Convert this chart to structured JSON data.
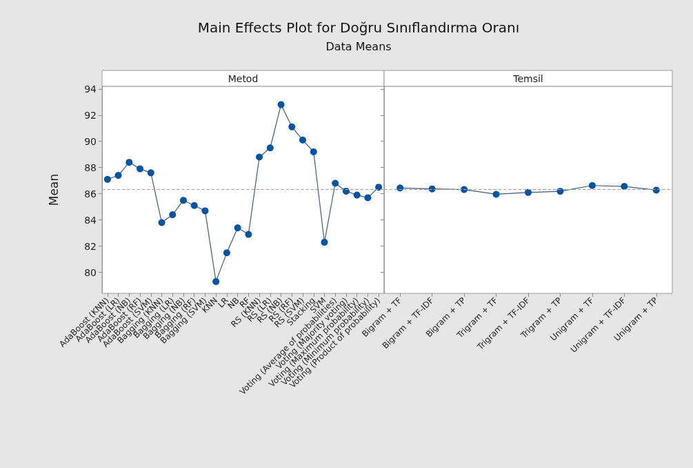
{
  "chart_data": [
    {
      "type": "line",
      "title": "Main Effects Plot for Doğru Sınıflandırma Oranı",
      "subtitle": "Data Means",
      "xlabel": "Metod",
      "ylabel": "Mean",
      "categories": [
        "AdaBoost (KNN)",
        "AdaBoost (LR)",
        "AdaBoost (NB)",
        "AdaBoost (RF)",
        "AdaBoost (SVM)",
        "Bagging (KNN)",
        "Bagging (LR)",
        "Bagging (NB)",
        "Bagging (RF)",
        "Bagging (SVM)",
        "KNN",
        "LR",
        "NB",
        "RF",
        "RS (KNN)",
        "RS (LR)",
        "RS (NB)",
        "RS (RF)",
        "RS (SVM)",
        "Stacking",
        "SVM",
        "Voting (Average of probabilities)",
        "Voting (Majority voting)",
        "Voting (Maximum probability)",
        "Voting (Minimum probability)",
        "Voting (Product of probability)"
      ],
      "series": [
        {
          "color": "#0054a6",
          "values": [
            87.1,
            87.4,
            88.4,
            87.9,
            87.6,
            83.8,
            84.4,
            85.5,
            85.1,
            84.7,
            79.3,
            81.5,
            83.4,
            82.9,
            88.8,
            89.5,
            92.8,
            91.1,
            90.1,
            89.2,
            82.3,
            86.8,
            86.2,
            85.9,
            85.7,
            86.5
          ]
        }
      ],
      "ylim": [
        78.4,
        94.2
      ],
      "yticks": [
        80,
        82,
        84,
        86,
        88,
        90,
        92,
        94
      ],
      "ref_lines": [
        {
          "axis": "y",
          "value": 86.35,
          "color": "#a0a0a0",
          "line_style": "dashed"
        }
      ],
      "marker": "circle",
      "grid": false
    },
    {
      "type": "line",
      "xlabel": "Temsil",
      "categories": [
        "Bigram + TF",
        "Bigram + TF-IDF",
        "Bigram + TP",
        "Trigram + TF",
        "Trigram + TF-IDF",
        "Trigram + TP",
        "Unigram + TF",
        "Unigram + TF-IDF",
        "Unigram + TP"
      ],
      "series": [
        {
          "color": "#0054a6",
          "values": [
            86.44,
            86.37,
            86.32,
            85.96,
            86.1,
            86.19,
            86.63,
            86.56,
            86.28
          ]
        }
      ],
      "ylim": [
        78.4,
        94.2
      ],
      "yticks": [
        80,
        82,
        84,
        86,
        88,
        90,
        92,
        94
      ],
      "tick_labels": "x",
      "ref_lines": [
        {
          "axis": "y",
          "value": 86.35,
          "color": "#a0a0a0",
          "line_style": "dashed"
        }
      ],
      "marker": "circle",
      "grid": false
    }
  ]
}
